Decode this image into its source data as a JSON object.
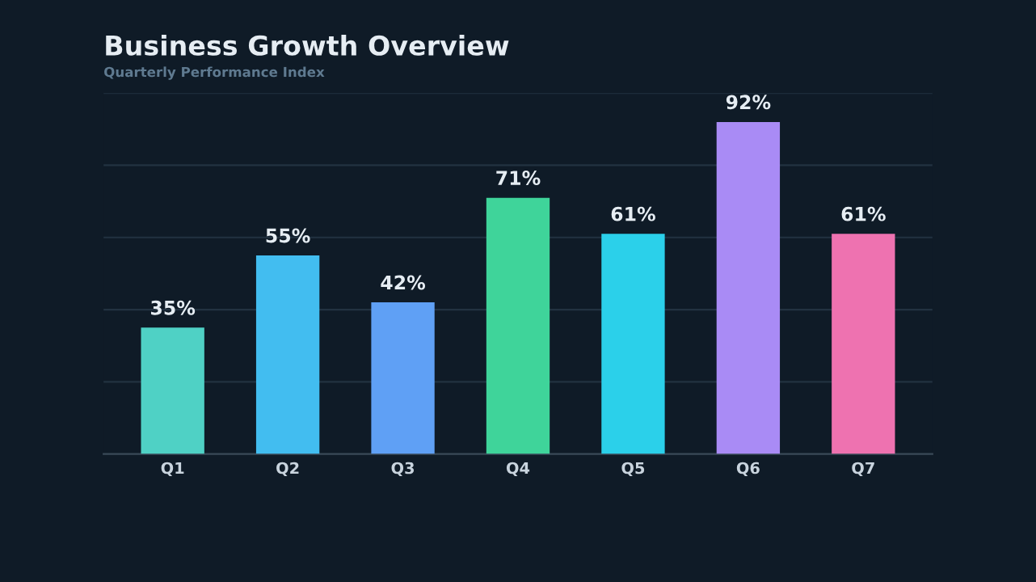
{
  "chart_data": {
    "type": "bar",
    "title": "Business Growth Overview",
    "subtitle": "Quarterly Performance Index",
    "categories": [
      "Q1",
      "Q2",
      "Q3",
      "Q4",
      "Q5",
      "Q6",
      "Q7"
    ],
    "values": [
      35,
      55,
      42,
      71,
      61,
      92,
      61
    ],
    "colors": [
      "#4fd1c5",
      "#42bdf0",
      "#5fa0f5",
      "#3fd49a",
      "#2bd0ea",
      "#a98bf5",
      "#ee72b0"
    ],
    "value_labels": [
      "35%",
      "55%",
      "42%",
      "71%",
      "61%",
      "92%",
      "61%"
    ],
    "ylim": [
      0,
      100
    ],
    "yticks": [
      {
        "value": 20,
        "label": null
      },
      {
        "value": 40,
        "label": null
      },
      {
        "value": 60,
        "label": null
      },
      {
        "value": 80,
        "label": null
      },
      {
        "value": 100,
        "label": null
      }
    ],
    "tick_labels": "x",
    "grid": "y",
    "legend": false
  }
}
